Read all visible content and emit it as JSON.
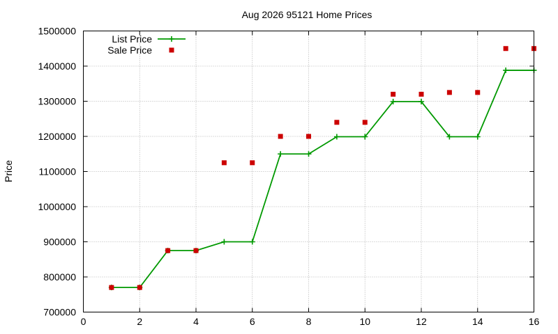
{
  "chart_data": {
    "type": "line",
    "title": "Aug 2026 95121 Home Prices",
    "xlabel": "",
    "ylabel": "Price",
    "xlim": [
      0,
      16
    ],
    "ylim": [
      700000,
      1500000
    ],
    "x_ticks": [
      0,
      2,
      4,
      6,
      8,
      10,
      12,
      14,
      16
    ],
    "y_ticks": [
      700000,
      800000,
      900000,
      1000000,
      1100000,
      1200000,
      1300000,
      1400000,
      1500000
    ],
    "grid": true,
    "legend_position": "top-left",
    "series": [
      {
        "name": "List Price",
        "type": "line",
        "color": "#009900",
        "marker": "plus",
        "x": [
          1,
          2,
          3,
          4,
          5,
          6,
          7,
          8,
          9,
          10,
          11,
          12,
          13,
          14,
          15,
          16
        ],
        "y": [
          770000,
          770000,
          875000,
          875000,
          900000,
          900000,
          1150000,
          1150000,
          1199000,
          1199000,
          1299000,
          1299000,
          1199000,
          1199000,
          1388000,
          1388000
        ]
      },
      {
        "name": "Sale Price",
        "type": "scatter",
        "color": "#cc0000",
        "marker": "square",
        "x": [
          1,
          2,
          3,
          4,
          5,
          6,
          7,
          8,
          9,
          10,
          11,
          12,
          13,
          14,
          15,
          16
        ],
        "y": [
          770000,
          770000,
          875000,
          875000,
          1125000,
          1125000,
          1200000,
          1200000,
          1240000,
          1240000,
          1320000,
          1320000,
          1325000,
          1325000,
          1450000,
          1450000
        ]
      }
    ]
  }
}
